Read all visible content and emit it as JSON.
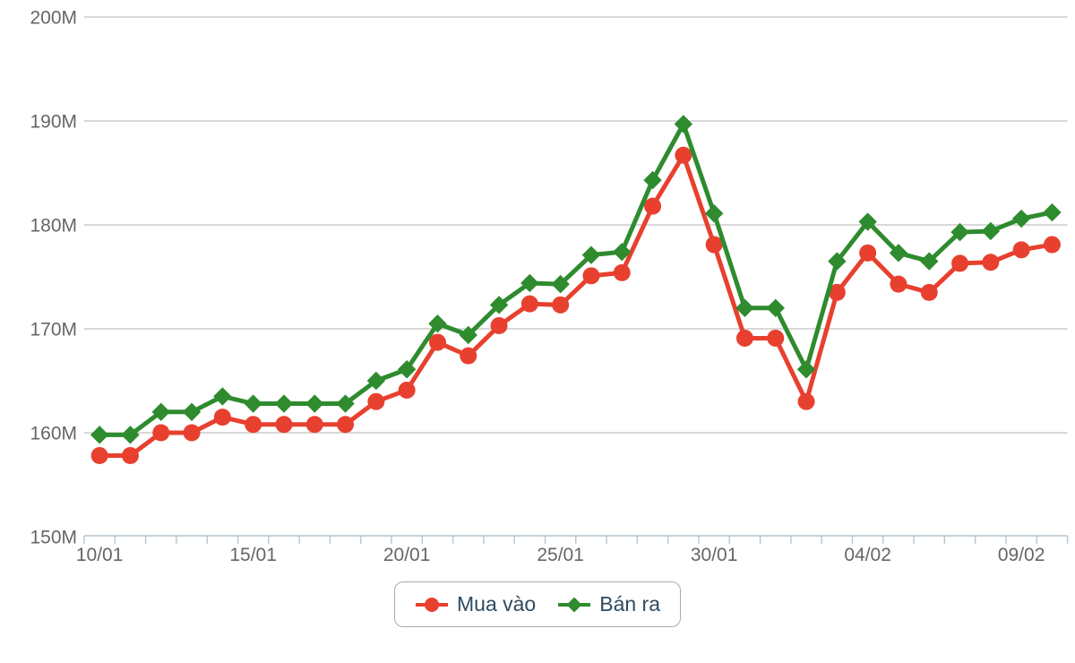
{
  "chart_data": {
    "type": "line",
    "title": "",
    "xlabel": "",
    "ylabel": "",
    "ylim": [
      150,
      200
    ],
    "grid": true,
    "legend_position": "bottom",
    "categories": [
      "10/01",
      "11/01",
      "12/01",
      "13/01",
      "14/01",
      "15/01",
      "16/01",
      "17/01",
      "18/01",
      "19/01",
      "20/01",
      "21/01",
      "22/01",
      "23/01",
      "24/01",
      "25/01",
      "26/01",
      "27/01",
      "28/01",
      "29/01",
      "30/01",
      "31/01",
      "01/02",
      "02/02",
      "03/02",
      "04/02",
      "05/02",
      "06/02",
      "07/02",
      "08/02",
      "09/02",
      "10/02"
    ],
    "series": [
      {
        "name": "Mua vào",
        "color": "#e8402f",
        "marker": "circle",
        "values": [
          157.8,
          157.8,
          160.0,
          160.0,
          161.5,
          160.8,
          160.8,
          160.8,
          160.8,
          163.0,
          164.1,
          168.7,
          167.4,
          170.3,
          172.4,
          172.3,
          175.1,
          175.4,
          181.8,
          186.7,
          178.1,
          169.1,
          169.1,
          163.0,
          173.5,
          177.3,
          174.3,
          173.5,
          176.3,
          176.4,
          177.6,
          178.1
        ]
      },
      {
        "name": "Bán ra",
        "color": "#2e8b2e",
        "marker": "diamond",
        "values": [
          159.8,
          159.8,
          162.0,
          162.0,
          163.5,
          162.8,
          162.8,
          162.8,
          162.8,
          165.0,
          166.1,
          170.5,
          169.4,
          172.3,
          174.4,
          174.3,
          177.1,
          177.4,
          184.3,
          189.7,
          181.1,
          172.0,
          172.0,
          166.1,
          176.5,
          180.3,
          177.3,
          176.5,
          179.3,
          179.4,
          180.6,
          181.2
        ]
      }
    ],
    "y_axis": {
      "ticks": [
        {
          "value": 150,
          "label": "150M"
        },
        {
          "value": 160,
          "label": "160M"
        },
        {
          "value": 170,
          "label": "170M"
        },
        {
          "value": 180,
          "label": "180M"
        },
        {
          "value": 190,
          "label": "190M"
        },
        {
          "value": 200,
          "label": "200M"
        }
      ]
    },
    "x_axis": {
      "major_ticks": [
        {
          "index": 0,
          "label": "10/01"
        },
        {
          "index": 5,
          "label": "15/01"
        },
        {
          "index": 10,
          "label": "20/01"
        },
        {
          "index": 15,
          "label": "25/01"
        },
        {
          "index": 20,
          "label": "30/01"
        },
        {
          "index": 25,
          "label": "04/02"
        },
        {
          "index": 30,
          "label": "09/02"
        }
      ]
    }
  },
  "colors": {
    "grid_line": "#cccccc",
    "axis_line": "#c6d2da",
    "tick_mark": "#b9c8d2",
    "axis_label": "#666666",
    "legend_text": "#2e4a60",
    "legend_border": "#a5abb2",
    "background": "#ffffff"
  },
  "legend": {
    "items": [
      {
        "label": "Mua vào"
      },
      {
        "label": "Bán ra"
      }
    ]
  }
}
